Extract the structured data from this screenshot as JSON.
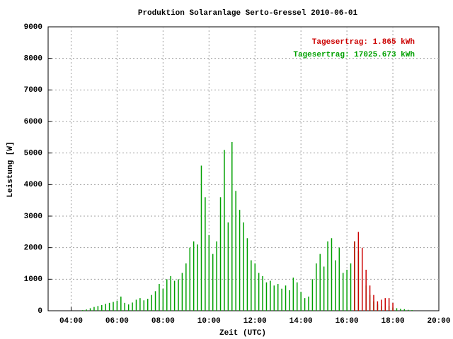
{
  "chart_data": {
    "type": "bar",
    "title": "Produktion Solaranlage Serto-Gressel 2010-06-01",
    "x_label": "Zeit (UTC)",
    "y_label": "Leistung [W]",
    "xlim": [
      "03:00",
      "20:00"
    ],
    "xticks": [
      "04:00",
      "06:00",
      "08:00",
      "10:00",
      "12:00",
      "14:00",
      "16:00",
      "18:00",
      "20:00"
    ],
    "ylim": [
      0,
      9000
    ],
    "yticks": [
      0,
      1000,
      2000,
      3000,
      4000,
      5000,
      6000,
      7000,
      8000,
      9000
    ],
    "grid": true,
    "annotations": [
      {
        "text": "Tagesertrag: 1.865 kWh",
        "color": "#cc0000"
      },
      {
        "text": "Tagesertrag: 17025.673 kWh",
        "color": "#00a000"
      }
    ],
    "series": [
      {
        "color": "#00a000",
        "x": [
          "04:30",
          "04:40",
          "04:50",
          "05:00",
          "05:10",
          "05:20",
          "05:30",
          "05:40",
          "05:50",
          "06:00",
          "06:10",
          "06:20",
          "06:30",
          "06:40",
          "06:50",
          "07:00",
          "07:10",
          "07:20",
          "07:30",
          "07:40",
          "07:50",
          "08:00",
          "08:10",
          "08:20",
          "08:30",
          "08:40",
          "08:50",
          "09:00",
          "09:10",
          "09:20",
          "09:30",
          "09:40",
          "09:50",
          "10:00",
          "10:10",
          "10:20",
          "10:30",
          "10:40",
          "10:50",
          "11:00",
          "11:10",
          "11:20",
          "11:30",
          "11:40",
          "11:50",
          "12:00",
          "12:10",
          "12:20",
          "12:30",
          "12:40",
          "12:50",
          "13:00",
          "13:10",
          "13:20",
          "13:30",
          "13:40",
          "13:50",
          "14:00",
          "14:10",
          "14:20",
          "14:30",
          "14:40",
          "14:50",
          "15:00",
          "15:10",
          "15:20",
          "15:30",
          "15:40",
          "15:50",
          "16:00",
          "16:10",
          "16:20",
          "16:30",
          "16:40",
          "16:50",
          "17:00",
          "17:10",
          "17:20",
          "17:30",
          "17:40",
          "17:50",
          "18:00",
          "18:10",
          "18:20",
          "18:30",
          "18:40",
          "18:50"
        ],
        "values": [
          20,
          40,
          80,
          120,
          150,
          180,
          220,
          250,
          280,
          320,
          450,
          250,
          200,
          260,
          350,
          400,
          330,
          380,
          500,
          620,
          850,
          700,
          1000,
          1100,
          950,
          1000,
          1200,
          1500,
          2000,
          2200,
          2100,
          4600,
          3600,
          2400,
          1800,
          2200,
          3600,
          5100,
          2800,
          5350,
          3800,
          3200,
          2800,
          2300,
          1600,
          1500,
          1200,
          1100,
          900,
          950,
          800,
          850,
          700,
          800,
          650,
          1050,
          900,
          600,
          400,
          450,
          1000,
          1500,
          1800,
          1400,
          2200,
          2300,
          1600,
          2000,
          1200,
          1300,
          1500,
          2200,
          1900,
          1000,
          800,
          500,
          300,
          200,
          150,
          200,
          150,
          100,
          80,
          60,
          50,
          30,
          20
        ]
      },
      {
        "color": "#cc0000",
        "x": [
          "16:20",
          "16:30",
          "16:40",
          "16:50",
          "17:00",
          "17:10",
          "17:20",
          "17:30",
          "17:40",
          "17:50",
          "18:00"
        ],
        "values": [
          2200,
          2500,
          2000,
          1300,
          800,
          500,
          300,
          350,
          400,
          400,
          250
        ]
      }
    ]
  }
}
